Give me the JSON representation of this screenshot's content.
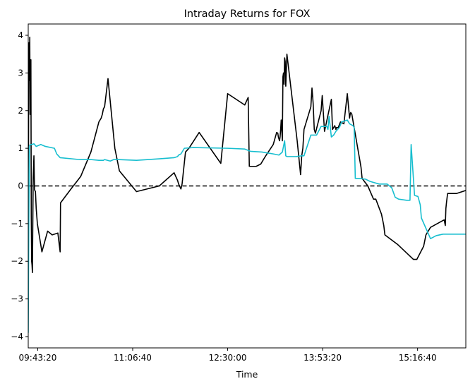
{
  "chart_data": {
    "type": "line",
    "title": "Intraday Returns for FOX",
    "xlabel": "Time",
    "ylabel": "",
    "x_unit": "time_of_day",
    "xlim": [
      "09:35:00",
      "15:59:00"
    ],
    "ylim": [
      -4.3,
      4.3
    ],
    "xticks": [
      "09:43:20",
      "11:06:40",
      "12:30:00",
      "13:53:20",
      "15:16:40"
    ],
    "yticks": [
      -4,
      -3,
      -2,
      -1,
      0,
      1,
      2,
      3,
      4
    ],
    "grid": false,
    "legend": "none",
    "reference_line": {
      "y": 0,
      "style": "dashed",
      "color": "#000000"
    },
    "series": [
      {
        "color": "#000000",
        "x": [
          "09:35:00",
          "09:35:30",
          "09:36:00",
          "09:36:20",
          "09:36:40",
          "09:37:00",
          "09:37:20",
          "09:37:40",
          "09:38:00",
          "09:38:20",
          "09:38:40",
          "09:39:20",
          "09:40:00",
          "09:40:30",
          "09:41:20",
          "09:42:00",
          "09:43:00",
          "09:47:00",
          "09:52:00",
          "09:56:00",
          "10:01:00",
          "10:03:00",
          "10:03:20",
          "10:12:00",
          "10:21:00",
          "10:30:00",
          "10:37:00",
          "10:39:00",
          "10:40:00",
          "10:41:00",
          "10:42:00",
          "10:44:00",
          "10:45:00",
          "10:51:00",
          "10:55:00",
          "11:10:00",
          "11:30:00",
          "11:43:00",
          "11:46:00",
          "11:47:00",
          "11:49:00",
          "11:50:00",
          "11:53:00",
          "11:56:00",
          "12:05:00",
          "12:24:00",
          "12:30:00",
          "12:45:00",
          "12:48:00",
          "12:49:00",
          "12:50:00",
          "12:52:00",
          "12:55:00",
          "12:59:00",
          "13:03:00",
          "13:10:00",
          "13:13:00",
          "13:14:00",
          "13:14:30",
          "13:15:00",
          "13:15:30",
          "13:16:00",
          "13:16:30",
          "13:17:00",
          "13:18:00",
          "13:18:30",
          "13:19:00",
          "13:19:30",
          "13:20:00",
          "13:20:30",
          "13:21:00",
          "13:22:00",
          "13:31:00",
          "13:33:00",
          "13:34:00",
          "13:35:00",
          "13:36:00",
          "13:37:00",
          "13:43:00",
          "13:44:00",
          "13:45:00",
          "13:46:00",
          "13:47:00",
          "13:52:00",
          "13:53:00",
          "13:55:00",
          "14:01:00",
          "14:02:00",
          "14:04:00",
          "14:05:00",
          "14:05:30",
          "14:07:00",
          "14:09:00",
          "14:12:00",
          "14:15:00",
          "14:17:00",
          "14:17:30",
          "14:18:00",
          "14:19:00",
          "14:27:00",
          "14:28:00",
          "14:33:00",
          "14:38:00",
          "14:40:00",
          "14:45:00",
          "14:47:00",
          "14:48:00",
          "14:59:00",
          "15:13:00",
          "15:16:00",
          "15:22:00",
          "15:24:00",
          "15:26:00",
          "15:28:00",
          "15:37:00",
          "15:40:00",
          "15:41:00",
          "15:41:30",
          "15:42:00",
          "15:43:00",
          "15:51:00",
          "15:59:00"
        ],
        "values": [
          -2.2,
          3.8,
          2.8,
          3.95,
          1.9,
          3.2,
          3.35,
          -0.8,
          -2.0,
          -2.1,
          -2.3,
          0.2,
          0.8,
          -0.1,
          -0.15,
          -0.6,
          -1.0,
          -1.75,
          -1.2,
          -1.3,
          -1.25,
          -1.75,
          -0.45,
          -0.1,
          0.25,
          0.9,
          1.7,
          1.8,
          1.9,
          2.05,
          2.1,
          2.6,
          2.85,
          1.0,
          0.4,
          -0.15,
          0.0,
          0.35,
          0.15,
          0.05,
          -0.08,
          0.05,
          0.9,
          1.0,
          1.42,
          0.6,
          2.45,
          2.15,
          2.35,
          0.52,
          0.52,
          0.52,
          0.52,
          0.58,
          0.78,
          1.1,
          1.42,
          1.4,
          1.3,
          1.25,
          1.2,
          1.3,
          1.5,
          1.75,
          1.2,
          2.9,
          3.0,
          2.7,
          3.4,
          3.3,
          2.65,
          3.5,
          1.2,
          0.6,
          0.3,
          0.8,
          1.0,
          1.5,
          2.1,
          2.6,
          2.2,
          1.5,
          1.4,
          2.0,
          2.4,
          1.45,
          2.3,
          1.5,
          1.6,
          1.5,
          1.55,
          1.55,
          1.7,
          1.65,
          2.45,
          1.8,
          1.9,
          1.95,
          1.9,
          0.5,
          0.2,
          0.0,
          -0.35,
          -0.35,
          -0.75,
          -1.05,
          -1.3,
          -1.55,
          -1.95,
          -1.95,
          -1.6,
          -1.3,
          -1.2,
          -1.1,
          -0.95,
          -0.9,
          -1.05,
          -0.6,
          -0.45,
          -0.2,
          -0.2,
          -0.12
        ]
      },
      {
        "color": "#17becf",
        "x": [
          "09:35:00",
          "09:35:30",
          "09:36:00",
          "09:37:00",
          "09:38:00",
          "09:40:00",
          "09:42:00",
          "09:46:00",
          "09:50:00",
          "09:58:00",
          "10:00:00",
          "10:03:00",
          "10:20:00",
          "10:30:00",
          "10:37:00",
          "10:40:00",
          "10:41:00",
          "10:42:00",
          "10:47:00",
          "10:50:00",
          "10:55:00",
          "11:10:00",
          "11:30:00",
          "11:43:00",
          "11:46:00",
          "11:47:00",
          "11:49:00",
          "11:52:00",
          "12:00:00",
          "12:30:00",
          "12:45:00",
          "12:50:00",
          "13:00:00",
          "13:10:00",
          "13:15:00",
          "13:18:00",
          "13:20:00",
          "13:21:00",
          "13:22:00",
          "13:30:00",
          "13:35:00",
          "13:37:00",
          "13:43:00",
          "13:48:00",
          "13:52:00",
          "13:57:00",
          "13:58:00",
          "13:59:00",
          "14:01:00",
          "14:03:00",
          "14:05:00",
          "14:08:00",
          "14:10:00",
          "14:15:00",
          "14:17:00",
          "14:20:00",
          "14:21:00",
          "14:22:00",
          "14:25:00",
          "14:31:00",
          "14:35:00",
          "14:43:00",
          "14:50:00",
          "14:54:00",
          "14:57:00",
          "15:00:00",
          "15:07:00",
          "15:10:00",
          "15:11:00",
          "15:14:00",
          "15:17:00",
          "15:19:00",
          "15:20:00",
          "15:28:00",
          "15:33:00",
          "15:39:00",
          "15:43:00",
          "15:59:00"
        ],
        "values": [
          -3.9,
          -1.0,
          1.05,
          1.1,
          1.1,
          1.12,
          1.05,
          1.1,
          1.05,
          1.0,
          0.85,
          0.75,
          0.7,
          0.7,
          0.68,
          0.68,
          0.68,
          0.7,
          0.66,
          0.7,
          0.7,
          0.68,
          0.72,
          0.75,
          0.78,
          0.82,
          0.85,
          1.0,
          1.02,
          1.0,
          0.98,
          0.92,
          0.9,
          0.85,
          0.82,
          0.9,
          1.2,
          0.8,
          0.78,
          0.78,
          0.8,
          0.8,
          1.35,
          1.35,
          1.58,
          1.58,
          1.5,
          1.85,
          1.3,
          1.35,
          1.45,
          1.55,
          1.7,
          1.75,
          1.65,
          1.6,
          1.55,
          0.2,
          0.2,
          0.18,
          0.12,
          0.05,
          0.05,
          -0.05,
          -0.3,
          -0.35,
          -0.38,
          -0.38,
          1.1,
          -0.25,
          -0.28,
          -0.5,
          -0.85,
          -1.4,
          -1.32,
          -1.28,
          -1.28,
          -1.28
        ]
      }
    ]
  }
}
